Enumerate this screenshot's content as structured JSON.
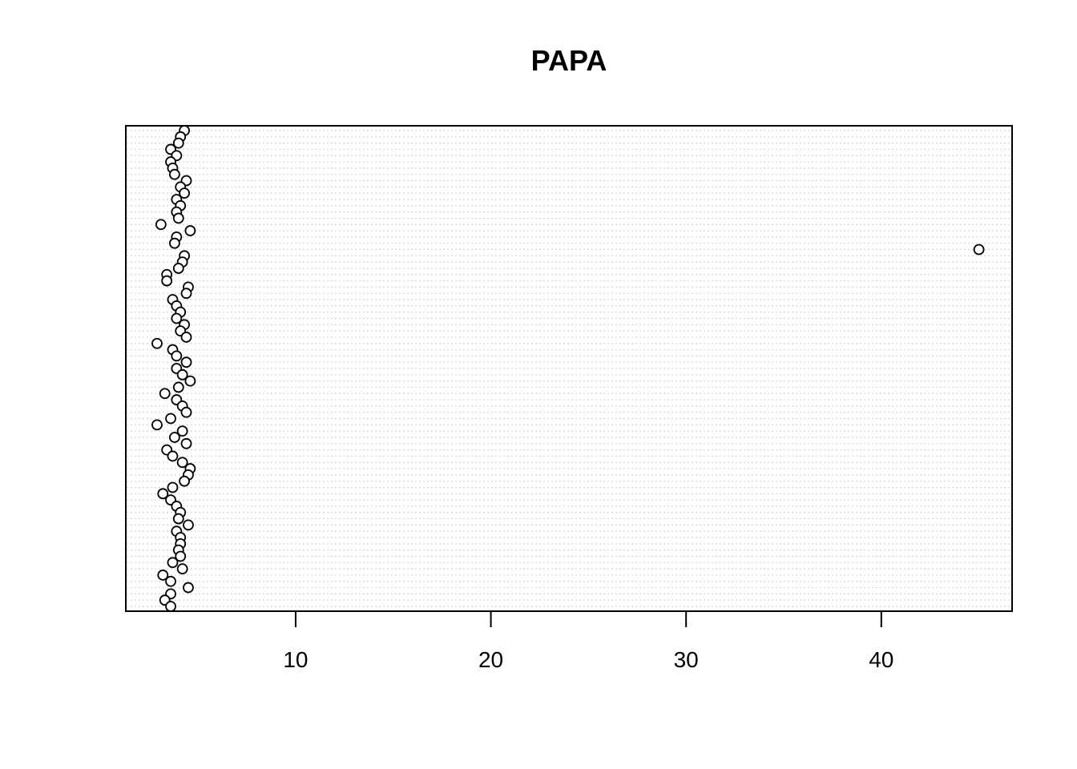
{
  "chart_data": {
    "type": "dotchart",
    "title": "PAPA",
    "xlabel": "",
    "ylabel": "",
    "xlim": [
      1.3,
      46.7
    ],
    "x_ticks": [
      10,
      20,
      30,
      40
    ],
    "grid": true,
    "legend": "none",
    "point_style": "open-circle",
    "values": [
      4.3,
      4.1,
      4.0,
      3.6,
      3.9,
      3.6,
      3.7,
      3.8,
      4.4,
      4.1,
      4.3,
      3.9,
      4.1,
      3.9,
      4.0,
      3.1,
      4.6,
      3.9,
      3.8,
      45.0,
      4.3,
      4.2,
      4.0,
      3.4,
      3.4,
      4.5,
      4.4,
      3.7,
      3.9,
      4.1,
      3.9,
      4.3,
      4.1,
      4.4,
      2.9,
      3.7,
      3.9,
      4.4,
      3.9,
      4.2,
      4.6,
      4.0,
      3.3,
      3.9,
      4.2,
      4.4,
      3.6,
      2.9,
      4.2,
      3.8,
      4.4,
      3.4,
      3.7,
      4.2,
      4.6,
      4.5,
      4.3,
      3.7,
      3.2,
      3.6,
      3.9,
      4.1,
      4.0,
      4.5,
      3.9,
      4.1,
      4.1,
      4.0,
      4.1,
      3.7,
      4.2,
      3.2,
      3.6,
      4.5,
      3.6,
      3.3,
      3.6
    ],
    "colors": {
      "grid": "#d3d3d3",
      "point_fill": "#ffffff",
      "point_stroke": "#000000",
      "frame": "#000000"
    }
  }
}
